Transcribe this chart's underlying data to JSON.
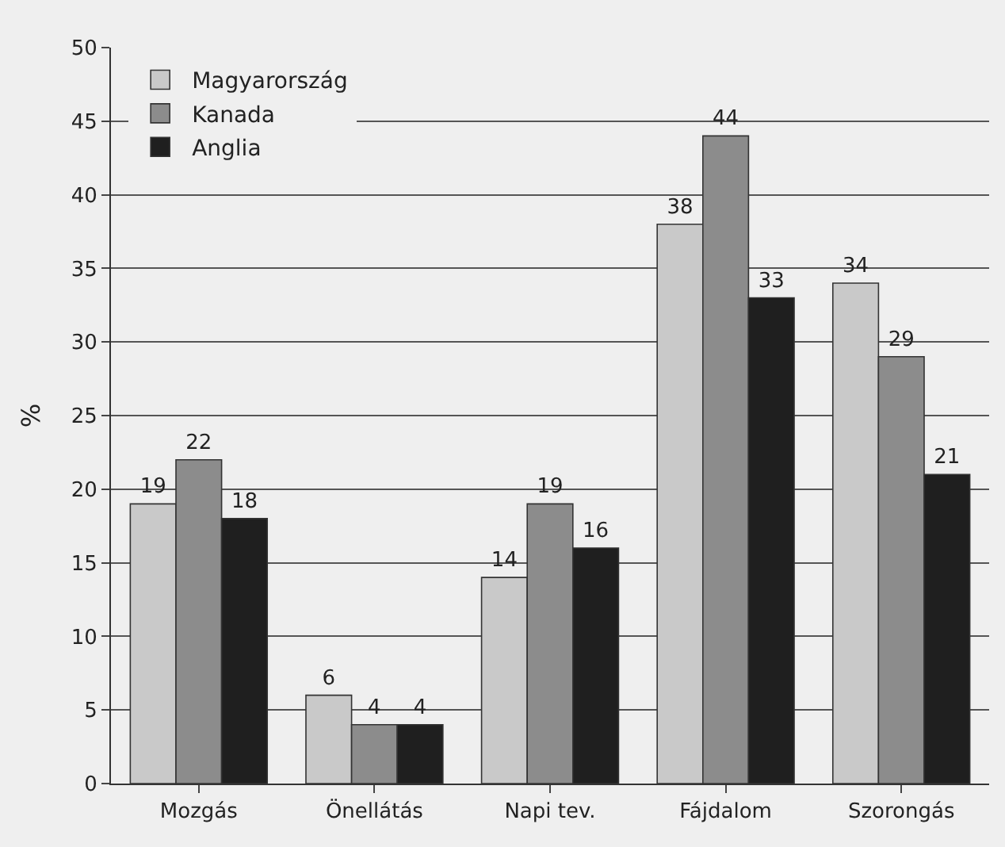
{
  "chart_data": {
    "type": "bar",
    "ylabel": "%",
    "categories": [
      "Mozgás",
      "Önellátás",
      "Napi tev.",
      "Fájdalom",
      "Szorongás"
    ],
    "series": [
      {
        "name": "Magyarország",
        "color": "#c9c9c9",
        "values": [
          19,
          6,
          14,
          38,
          34
        ]
      },
      {
        "name": "Kanada",
        "color": "#8c8c8c",
        "values": [
          22,
          4,
          19,
          44,
          29
        ]
      },
      {
        "name": "Anglia",
        "color": "#1f1f1f",
        "values": [
          18,
          4,
          16,
          33,
          21
        ]
      }
    ],
    "ylim": [
      0,
      50
    ],
    "yticks": [
      0,
      5,
      10,
      15,
      20,
      25,
      30,
      35,
      40,
      45,
      50
    ],
    "grid": "y",
    "legend": "top left",
    "data_labels": true
  }
}
